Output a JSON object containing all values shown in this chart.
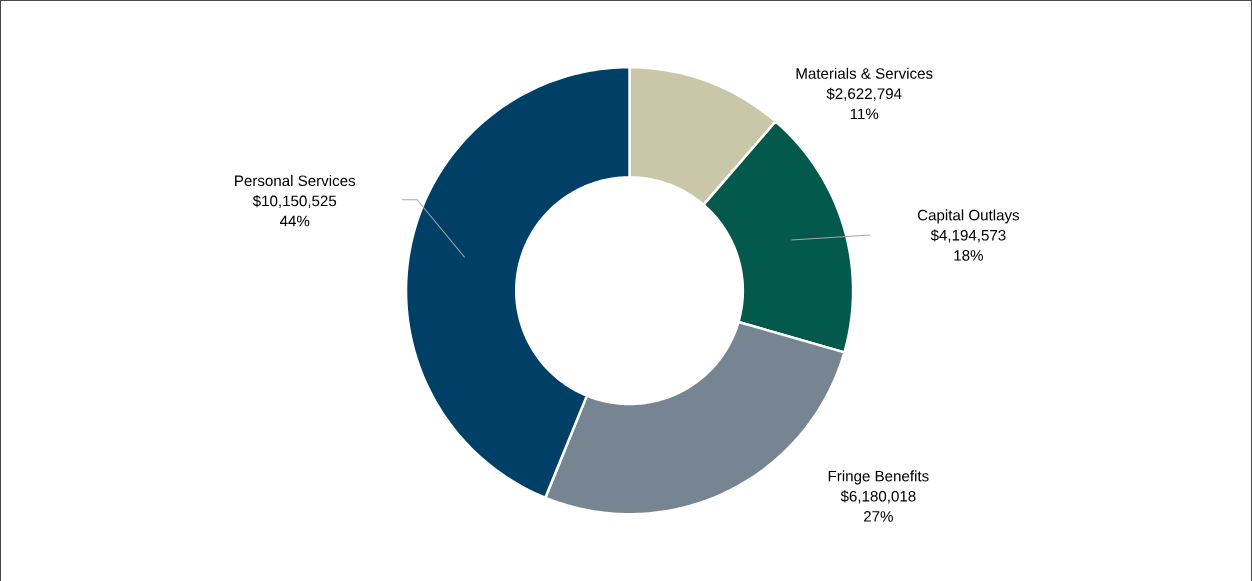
{
  "chart_data": {
    "type": "donut",
    "categories": [
      "Materials & Services",
      "Capital Outlays",
      "Fringe Benefits",
      "Personal Services"
    ],
    "values": [
      2622794,
      4194573,
      6180018,
      10150525
    ],
    "value_labels": [
      "$2,622,794",
      "$4,194,573",
      "$6,180,018",
      "$10,150,525"
    ],
    "annotations": [
      "11%",
      "18%",
      "27%",
      "44%"
    ],
    "colors": [
      "#c9c7a7",
      "#03594b",
      "#778592",
      "#003f66"
    ]
  }
}
